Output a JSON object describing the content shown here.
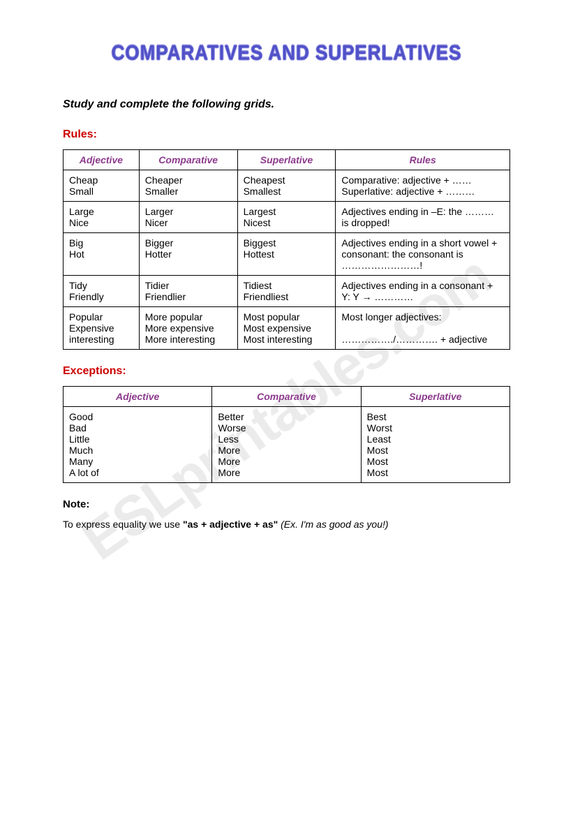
{
  "watermark": "ESLprintables.com",
  "title": "COMPARATIVES AND SUPERLATIVES",
  "instruction": "Study and complete the following grids.",
  "rules_label": "Rules:",
  "rules_headers": [
    "Adjective",
    "Comparative",
    "Superlative",
    "Rules"
  ],
  "rules_rows": [
    {
      "adj": "Cheap\nSmall",
      "comp": "Cheaper\nSmaller",
      "sup": "Cheapest\nSmallest",
      "rule": "Comparative: adjective + ……\nSuperlative: adjective + ………"
    },
    {
      "adj": "Large\nNice",
      "comp": "Larger\nNicer",
      "sup": "Largest\nNicest",
      "rule": "Adjectives ending in –E: the ……… is dropped!"
    },
    {
      "adj": "Big\nHot",
      "comp": "Bigger\nHotter",
      "sup": "Biggest\nHottest",
      "rule": "Adjectives ending in a short vowel + consonant: the consonant is ……………………!"
    },
    {
      "adj": "Tidy\nFriendly",
      "comp": "Tidier\nFriendlier",
      "sup": "Tidiest\nFriendliest",
      "rule": "Adjectives ending in a consonant + Y: Y → …………"
    },
    {
      "adj": "Popular\nExpensive\ninteresting",
      "comp": "More popular\nMore expensive\nMore interesting",
      "sup": "Most popular\nMost expensive\nMost interesting",
      "rule": "Most longer adjectives:\n\n……………./…………. + adjective"
    }
  ],
  "exceptions_label": "Exceptions:",
  "exceptions_headers": [
    "Adjective",
    "Comparative",
    "Superlative"
  ],
  "exceptions_row": {
    "adj": "Good\nBad\nLittle\nMuch\nMany\nA lot of",
    "comp": "Better\nWorse\nLess\nMore\nMore\nMore",
    "sup": "Best\nWorst\nLeast\nMost\nMost\nMost"
  },
  "note_label": "Note:",
  "note_text_prefix": "To express equality we use ",
  "note_bold": "\"as + adjective + as\"",
  "note_example": " (Ex. I'm as good as you!)",
  "colors": {
    "title": "#5050c8",
    "section": "#cc0000",
    "header": "#8b3a8b",
    "watermark": "rgba(0,0,0,0.08)"
  }
}
